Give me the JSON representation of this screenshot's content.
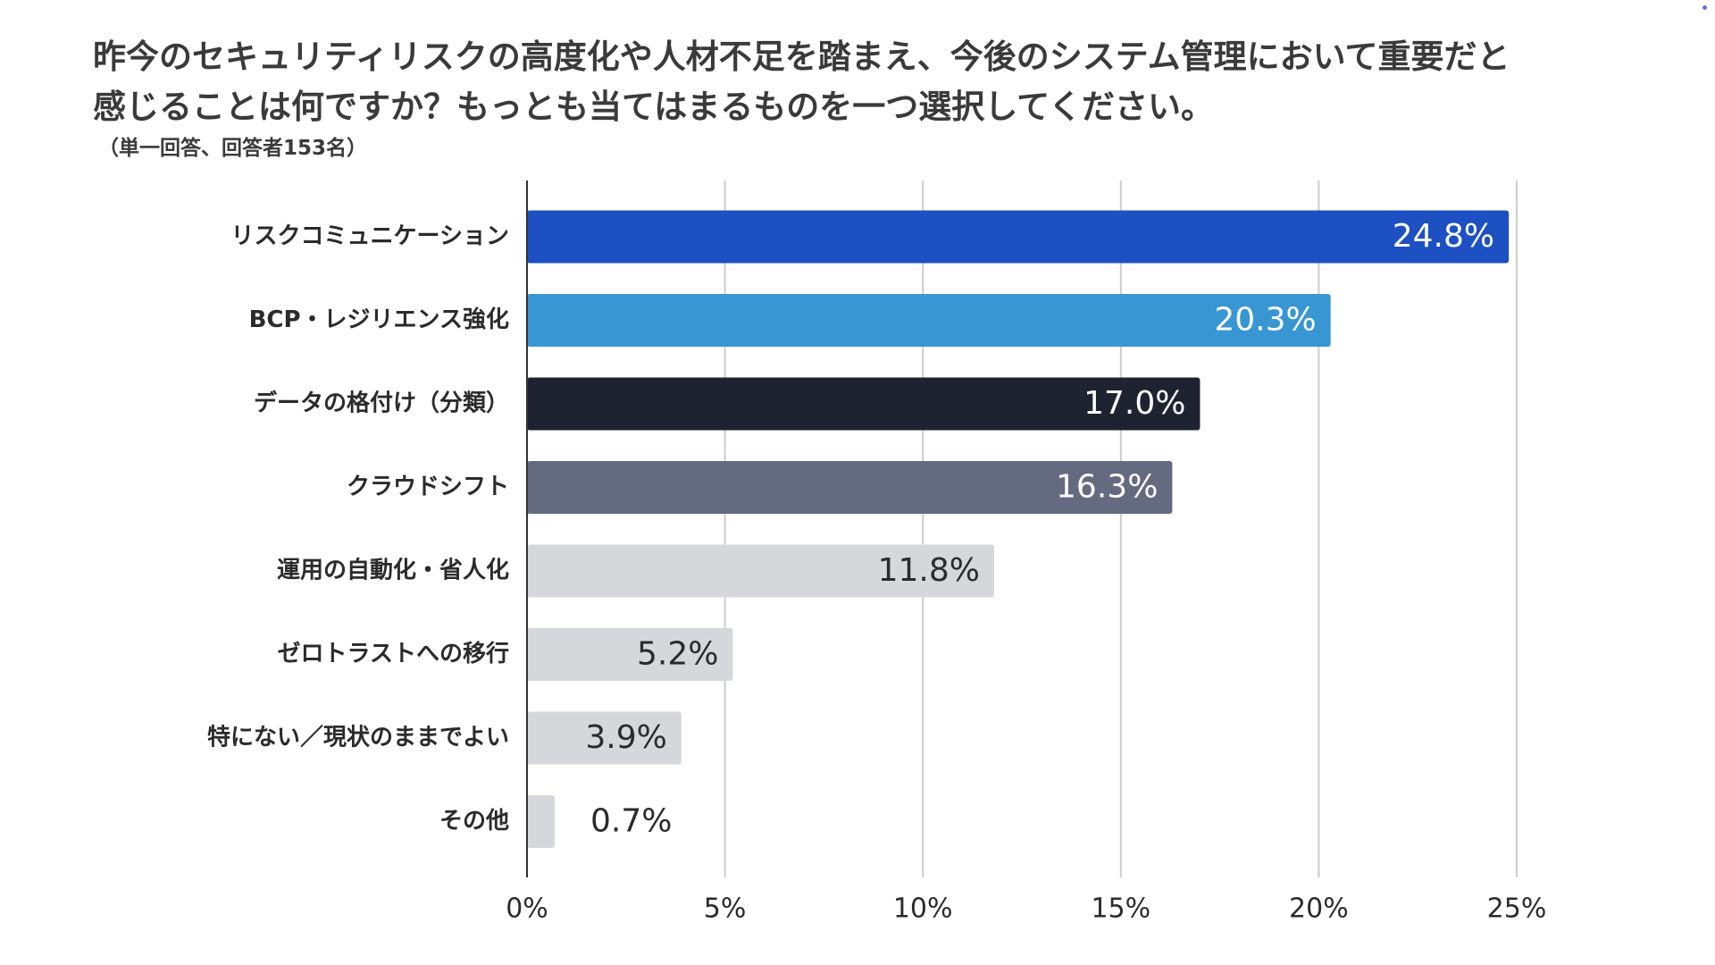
{
  "title": {
    "line1": "昨今のセキュリティリスクの高度化や人材不足を踏まえ、今後のシステム管理において重要だと",
    "line2": "感じることは何ですか？もっとも当てはまるものを一つ選択してください。"
  },
  "subtitle": "（単一回答、回答者153名）",
  "chart_data": {
    "type": "bar",
    "orientation": "horizontal",
    "title": "昨今のセキュリティリスクの高度化や人材不足を踏まえ、今後のシステム管理において重要だと感じることは何ですか？もっとも当てはまるものを一つ選択してください。",
    "subtitle": "（単一回答、回答者153名）",
    "categories": [
      "リスクコミュニケーション",
      "BCP・レジリエンス強化",
      "データの格付け（分類）",
      "クラウドシフト",
      "運用の自動化・省人化",
      "ゼロトラストへの移行",
      "特にない／現状のままでよい",
      "その他"
    ],
    "values": [
      24.8,
      20.3,
      17.0,
      16.3,
      11.8,
      5.2,
      3.9,
      0.7
    ],
    "value_labels": [
      "24.8%",
      "20.3%",
      "17.0%",
      "16.3%",
      "11.8%",
      "5.2%",
      "3.9%",
      "0.7%"
    ],
    "colors": [
      "#1c50c3",
      "#3896d3",
      "#1f2331",
      "#646a80",
      "#d6d7db",
      "#d6d7db",
      "#d6d7db",
      "#d6d7db"
    ],
    "label_colors": [
      "#ffffff",
      "#ffffff",
      "#ffffff",
      "#ffffff",
      "#2b2b2b",
      "#2b2b2b",
      "#2b2b2b",
      "#2b2b2b"
    ],
    "xlim": [
      0,
      25
    ],
    "xticks": [
      0,
      5,
      10,
      15,
      20,
      25
    ],
    "xtick_labels": [
      "0%",
      "5%",
      "10%",
      "15%",
      "20%",
      "25%"
    ],
    "grid": true,
    "gridline_color": "#cccccc",
    "axis_color": "#333333",
    "xlabel": "",
    "ylabel": ""
  }
}
